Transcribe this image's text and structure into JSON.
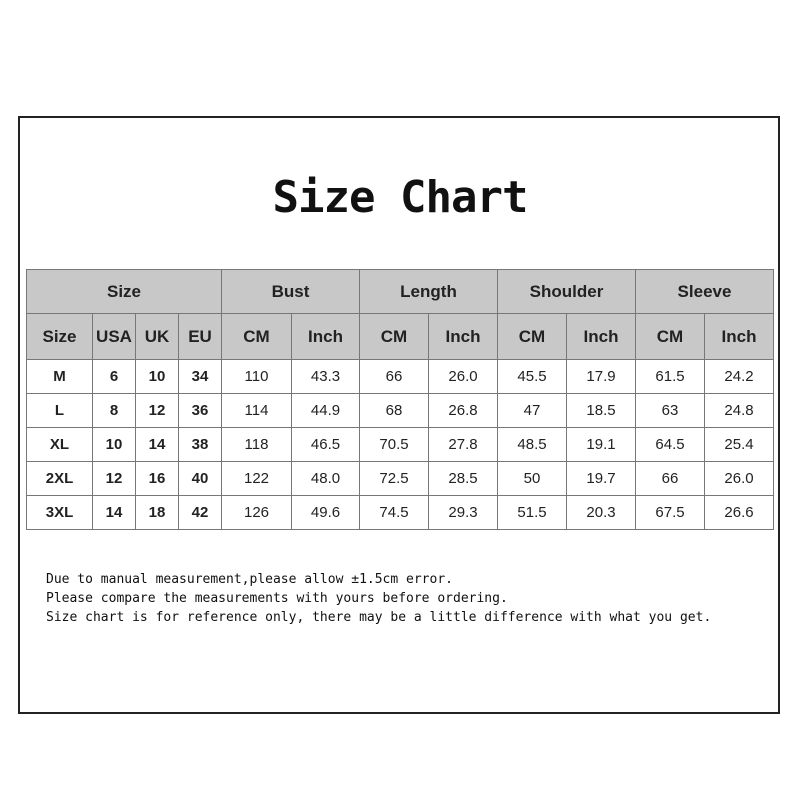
{
  "title": "Size Chart",
  "groups": [
    "Size",
    "Bust",
    "Length",
    "Shoulder",
    "Sleeve"
  ],
  "columns": [
    "Size",
    "USA",
    "UK",
    "EU",
    "CM",
    "Inch",
    "CM",
    "Inch",
    "CM",
    "Inch",
    "CM",
    "Inch"
  ],
  "rows": [
    [
      "M",
      "6",
      "10",
      "34",
      "110",
      "43.3",
      "66",
      "26.0",
      "45.5",
      "17.9",
      "61.5",
      "24.2"
    ],
    [
      "L",
      "8",
      "12",
      "36",
      "114",
      "44.9",
      "68",
      "26.8",
      "47",
      "18.5",
      "63",
      "24.8"
    ],
    [
      "XL",
      "10",
      "14",
      "38",
      "118",
      "46.5",
      "70.5",
      "27.8",
      "48.5",
      "19.1",
      "64.5",
      "25.4"
    ],
    [
      "2XL",
      "12",
      "16",
      "40",
      "122",
      "48.0",
      "72.5",
      "28.5",
      "50",
      "19.7",
      "66",
      "26.0"
    ],
    [
      "3XL",
      "14",
      "18",
      "42",
      "126",
      "49.6",
      "74.5",
      "29.3",
      "51.5",
      "20.3",
      "67.5",
      "26.6"
    ]
  ],
  "notes": [
    "Due to manual measurement,please allow ±1.5cm error.",
    "Please compare the measurements with yours before ordering.",
    "Size chart is for reference only, there may be a little difference with what you get."
  ],
  "colors": {
    "header_bg": "#c8c8c8",
    "border": "#777777"
  }
}
